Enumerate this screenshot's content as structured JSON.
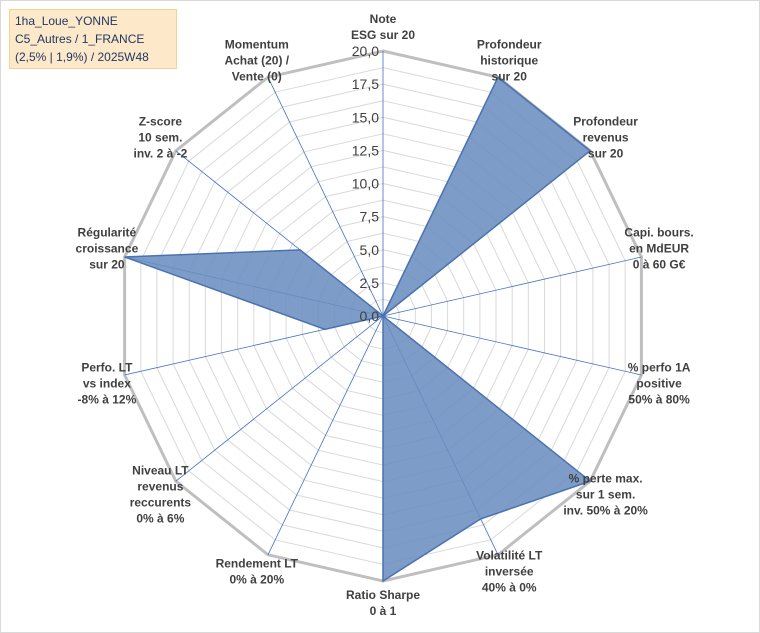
{
  "info_box": {
    "line1": "1ha_Loue_YONNE",
    "line2": "C5_Autres / 1_FRANCE",
    "line3": "(2,5% | 1,9%) / 2025W48"
  },
  "colors": {
    "fill": "#6b8ebf",
    "stroke": "#4a72b0",
    "grid": "#d9d9d9",
    "outer_ring": "#bfbfbf",
    "spoke": "#4472c4",
    "info_bg": "#fde9c9"
  },
  "chart_data": {
    "type": "radar",
    "r_range": [
      0,
      20
    ],
    "tick_values": [
      0,
      2.5,
      5,
      7.5,
      10,
      12.5,
      15,
      17.5,
      20
    ],
    "tick_labels": [
      "0,0",
      "2,5",
      "5,0",
      "7,5",
      "10,0",
      "12,5",
      "15,0",
      "17,5",
      "20,0"
    ],
    "axes": [
      {
        "label": [
          "Note",
          "ESG sur 20"
        ],
        "value": 0
      },
      {
        "label": [
          "Profondeur",
          "historique",
          "sur 20"
        ],
        "value": 20
      },
      {
        "label": [
          "Profondeur",
          "revenus",
          "sur 20"
        ],
        "value": 20
      },
      {
        "label": [
          "Capi. bours.",
          "en MdEUR",
          "0 à 60 G€"
        ],
        "value": 0
      },
      {
        "label": [
          "% perfo 1A",
          "positive",
          "50% à 80%"
        ],
        "value": 0
      },
      {
        "label": [
          "% perte max.",
          "sur 1 sem.",
          "inv. 50% à 20%"
        ],
        "value": 20
      },
      {
        "label": [
          "Volatilité LT",
          "inversée",
          "40% à 0%"
        ],
        "value": 17
      },
      {
        "label": [
          "Ratio Sharpe",
          "0 à 1"
        ],
        "value": 20
      },
      {
        "label": [
          "Rendement LT",
          "0% à 20%"
        ],
        "value": 0
      },
      {
        "label": [
          "Niveau LT",
          "revenus",
          "reccurents",
          "0% à 6%"
        ],
        "value": 0
      },
      {
        "label": [
          "Perfo. LT",
          "vs index",
          "-8% à 12%"
        ],
        "value": 4.5
      },
      {
        "label": [
          "Régularité",
          "croissance",
          "sur 20"
        ],
        "value": 20
      },
      {
        "label": [
          "Z-score",
          "10 sem.",
          "inv. 2 à -2"
        ],
        "value": 8
      },
      {
        "label": [
          "Momentum",
          "Achat (20) /",
          "Vente (0)"
        ],
        "value": 0
      }
    ]
  }
}
